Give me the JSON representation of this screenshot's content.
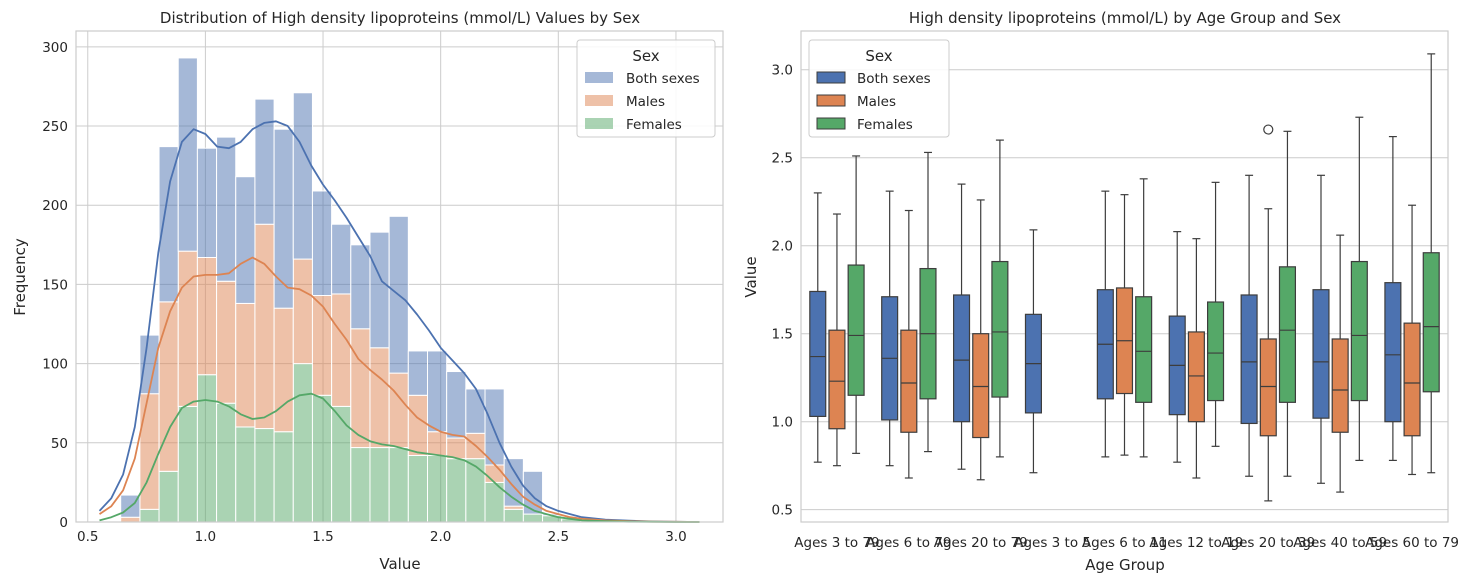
{
  "colors": {
    "both": "#4c72b0",
    "males": "#dd8452",
    "females": "#55a868",
    "grid": "#cccccc",
    "frame": "#cccccc",
    "whisker": "#3d3d3d"
  },
  "chart_data": [
    {
      "type": "histogram",
      "title": "Distribution of High density lipoproteins (mmol/L) Values by Sex",
      "xlabel": "Value",
      "ylabel": "Frequency",
      "xlim": [
        0.45,
        3.2
      ],
      "ylim": [
        0,
        310
      ],
      "xticks": [
        0.5,
        1.0,
        1.5,
        2.0,
        2.5,
        3.0
      ],
      "xtick_labels": [
        "0.5",
        "1.0",
        "1.5",
        "2.0",
        "2.5",
        "3.0"
      ],
      "yticks": [
        0,
        50,
        100,
        150,
        200,
        250,
        300
      ],
      "ytick_labels": [
        "0",
        "50",
        "100",
        "150",
        "200",
        "250",
        "300"
      ],
      "bin_start": 0.64,
      "bin_width": 0.0815,
      "stacked": true,
      "legend_title": "Sex",
      "legend_position": "top-right",
      "series": [
        {
          "name": "Females",
          "color_key": "females",
          "values": [
            0,
            8,
            32,
            73,
            93,
            75,
            60,
            59,
            57,
            100,
            80,
            73,
            47,
            47,
            47,
            42,
            42,
            40,
            40,
            25,
            8,
            5,
            4,
            2,
            1,
            0.5,
            0.3,
            0.2,
            0.1,
            0.1
          ]
        },
        {
          "name": "Males",
          "color_key": "males",
          "values": [
            3,
            73,
            107,
            98,
            74,
            77,
            78,
            129,
            78,
            66,
            63,
            71,
            75,
            63,
            47,
            38,
            15,
            13,
            16,
            11,
            2,
            0,
            0,
            0,
            0,
            0,
            0,
            0,
            0,
            0
          ]
        },
        {
          "name": "Both sexes",
          "color_key": "both",
          "values": [
            14,
            37,
            98,
            122,
            69,
            91,
            80,
            79,
            113,
            105,
            66,
            44,
            53,
            73,
            99,
            28,
            51,
            42,
            28,
            48,
            30,
            27,
            1,
            0,
            0,
            0,
            0,
            0,
            0,
            0
          ]
        }
      ],
      "kde": [
        {
          "name": "Both sexes",
          "color_key": "both",
          "x": [
            0.55,
            0.6,
            0.65,
            0.7,
            0.75,
            0.8,
            0.85,
            0.9,
            0.95,
            1.0,
            1.05,
            1.1,
            1.15,
            1.2,
            1.25,
            1.3,
            1.35,
            1.4,
            1.45,
            1.5,
            1.55,
            1.6,
            1.65,
            1.7,
            1.75,
            1.8,
            1.85,
            1.9,
            1.95,
            2.0,
            2.05,
            2.1,
            2.15,
            2.2,
            2.25,
            2.3,
            2.35,
            2.4,
            2.45,
            2.5,
            2.55,
            2.6,
            2.7,
            2.8,
            2.9,
            3.0,
            3.1
          ],
          "y": [
            7,
            15,
            30,
            60,
            110,
            170,
            215,
            240,
            248,
            245,
            237,
            236,
            240,
            248,
            252,
            253,
            250,
            240,
            225,
            213,
            203,
            192,
            180,
            168,
            152,
            146,
            140,
            131,
            121,
            110,
            102,
            94,
            84,
            68,
            50,
            35,
            23,
            15,
            10,
            7,
            5,
            3,
            1.5,
            0.8,
            0.3,
            0.1,
            0
          ]
        },
        {
          "name": "Males",
          "color_key": "males",
          "x": [
            0.55,
            0.6,
            0.65,
            0.7,
            0.75,
            0.8,
            0.85,
            0.9,
            0.95,
            1.0,
            1.05,
            1.1,
            1.15,
            1.2,
            1.25,
            1.3,
            1.35,
            1.4,
            1.45,
            1.5,
            1.55,
            1.6,
            1.65,
            1.7,
            1.75,
            1.8,
            1.85,
            1.9,
            1.95,
            2.0,
            2.05,
            2.1,
            2.15,
            2.2,
            2.25,
            2.3,
            2.35,
            2.4,
            2.45,
            2.5,
            2.55,
            2.6,
            2.7,
            2.8,
            2.9,
            3.0,
            3.1
          ],
          "y": [
            5,
            10,
            20,
            40,
            75,
            110,
            133,
            148,
            155,
            156,
            156,
            157,
            163,
            167,
            163,
            155,
            148,
            147,
            143,
            136,
            125,
            115,
            103,
            96,
            90,
            83,
            74,
            66,
            61,
            57,
            55,
            54,
            48,
            41,
            33,
            24,
            16,
            11,
            7,
            5,
            3,
            2,
            1,
            0.5,
            0.2,
            0.1,
            0
          ]
        },
        {
          "name": "Females",
          "color_key": "females",
          "x": [
            0.55,
            0.6,
            0.65,
            0.7,
            0.75,
            0.8,
            0.85,
            0.9,
            0.95,
            1.0,
            1.05,
            1.1,
            1.15,
            1.2,
            1.25,
            1.3,
            1.35,
            1.4,
            1.45,
            1.5,
            1.55,
            1.6,
            1.65,
            1.7,
            1.75,
            1.8,
            1.85,
            1.9,
            1.95,
            2.0,
            2.05,
            2.1,
            2.15,
            2.2,
            2.25,
            2.3,
            2.35,
            2.4,
            2.45,
            2.5,
            2.55,
            2.6,
            2.7,
            2.8,
            2.9,
            3.0,
            3.1
          ],
          "y": [
            1,
            3,
            6,
            12,
            25,
            43,
            60,
            72,
            76,
            77,
            76,
            73,
            68,
            65,
            66,
            70,
            76,
            80,
            81,
            78,
            70,
            61,
            55,
            51,
            49,
            48,
            46,
            44,
            43,
            42,
            41,
            39,
            35,
            29,
            22,
            16,
            11,
            7,
            5,
            3,
            2,
            1,
            0.5,
            0.2,
            0.1,
            0,
            0
          ]
        }
      ]
    },
    {
      "type": "boxplot",
      "title": "High density lipoproteins (mmol/L) by Age Group and Sex",
      "xlabel": "Age Group",
      "ylabel": "Value",
      "ylim": [
        0.43,
        3.22
      ],
      "yticks": [
        0.5,
        1.0,
        1.5,
        2.0,
        2.5,
        3.0
      ],
      "ytick_labels": [
        "0.5",
        "1.0",
        "1.5",
        "2.0",
        "2.5",
        "3.0"
      ],
      "categories": [
        "Ages 3 to 79",
        "Ages 6 to 79",
        "Ages 20 to 79",
        "Ages 3 to 5",
        "Ages 6 to 11",
        "Ages 12 to 19",
        "Ages 20 to 39",
        "Ages 40 to 59",
        "Ages 60 to 79"
      ],
      "legend_title": "Sex",
      "legend_position": "top-left",
      "hues": [
        "Both sexes",
        "Males",
        "Females"
      ],
      "hue_color_keys": [
        "both",
        "males",
        "females"
      ],
      "boxes": [
        {
          "category": 0,
          "hue": 0,
          "wlo": 0.77,
          "q1": 1.03,
          "med": 1.37,
          "q3": 1.74,
          "whi": 2.3,
          "outliers": []
        },
        {
          "category": 0,
          "hue": 1,
          "wlo": 0.75,
          "q1": 0.96,
          "med": 1.23,
          "q3": 1.52,
          "whi": 2.18,
          "outliers": []
        },
        {
          "category": 0,
          "hue": 2,
          "wlo": 0.82,
          "q1": 1.15,
          "med": 1.49,
          "q3": 1.89,
          "whi": 2.51,
          "outliers": []
        },
        {
          "category": 1,
          "hue": 0,
          "wlo": 0.75,
          "q1": 1.01,
          "med": 1.36,
          "q3": 1.71,
          "whi": 2.31,
          "outliers": []
        },
        {
          "category": 1,
          "hue": 1,
          "wlo": 0.68,
          "q1": 0.94,
          "med": 1.22,
          "q3": 1.52,
          "whi": 2.2,
          "outliers": []
        },
        {
          "category": 1,
          "hue": 2,
          "wlo": 0.83,
          "q1": 1.13,
          "med": 1.5,
          "q3": 1.87,
          "whi": 2.53,
          "outliers": []
        },
        {
          "category": 2,
          "hue": 0,
          "wlo": 0.73,
          "q1": 1.0,
          "med": 1.35,
          "q3": 1.72,
          "whi": 2.35,
          "outliers": []
        },
        {
          "category": 2,
          "hue": 1,
          "wlo": 0.67,
          "q1": 0.91,
          "med": 1.2,
          "q3": 1.5,
          "whi": 2.26,
          "outliers": []
        },
        {
          "category": 2,
          "hue": 2,
          "wlo": 0.8,
          "q1": 1.14,
          "med": 1.51,
          "q3": 1.91,
          "whi": 2.6,
          "outliers": []
        },
        {
          "category": 3,
          "hue": 0,
          "wlo": 0.71,
          "q1": 1.05,
          "med": 1.33,
          "q3": 1.61,
          "whi": 2.09,
          "outliers": []
        },
        {
          "category": 4,
          "hue": 0,
          "wlo": 0.8,
          "q1": 1.13,
          "med": 1.44,
          "q3": 1.75,
          "whi": 2.31,
          "outliers": []
        },
        {
          "category": 4,
          "hue": 1,
          "wlo": 0.81,
          "q1": 1.16,
          "med": 1.46,
          "q3": 1.76,
          "whi": 2.29,
          "outliers": []
        },
        {
          "category": 4,
          "hue": 2,
          "wlo": 0.8,
          "q1": 1.11,
          "med": 1.4,
          "q3": 1.71,
          "whi": 2.38,
          "outliers": []
        },
        {
          "category": 5,
          "hue": 0,
          "wlo": 0.77,
          "q1": 1.04,
          "med": 1.32,
          "q3": 1.6,
          "whi": 2.08,
          "outliers": []
        },
        {
          "category": 5,
          "hue": 1,
          "wlo": 0.68,
          "q1": 1.0,
          "med": 1.26,
          "q3": 1.51,
          "whi": 2.04,
          "outliers": []
        },
        {
          "category": 5,
          "hue": 2,
          "wlo": 0.86,
          "q1": 1.12,
          "med": 1.39,
          "q3": 1.68,
          "whi": 2.36,
          "outliers": []
        },
        {
          "category": 6,
          "hue": 0,
          "wlo": 0.69,
          "q1": 0.99,
          "med": 1.34,
          "q3": 1.72,
          "whi": 2.4,
          "outliers": []
        },
        {
          "category": 6,
          "hue": 1,
          "wlo": 0.55,
          "q1": 0.92,
          "med": 1.2,
          "q3": 1.47,
          "whi": 2.21,
          "outliers": [
            2.66
          ]
        },
        {
          "category": 6,
          "hue": 2,
          "wlo": 0.69,
          "q1": 1.11,
          "med": 1.52,
          "q3": 1.88,
          "whi": 2.65,
          "outliers": []
        },
        {
          "category": 7,
          "hue": 0,
          "wlo": 0.65,
          "q1": 1.02,
          "med": 1.34,
          "q3": 1.75,
          "whi": 2.4,
          "outliers": []
        },
        {
          "category": 7,
          "hue": 1,
          "wlo": 0.6,
          "q1": 0.94,
          "med": 1.18,
          "q3": 1.47,
          "whi": 2.06,
          "outliers": []
        },
        {
          "category": 7,
          "hue": 2,
          "wlo": 0.78,
          "q1": 1.12,
          "med": 1.49,
          "q3": 1.91,
          "whi": 2.73,
          "outliers": []
        },
        {
          "category": 8,
          "hue": 0,
          "wlo": 0.78,
          "q1": 1.0,
          "med": 1.38,
          "q3": 1.79,
          "whi": 2.62,
          "outliers": []
        },
        {
          "category": 8,
          "hue": 1,
          "wlo": 0.7,
          "q1": 0.92,
          "med": 1.22,
          "q3": 1.56,
          "whi": 2.23,
          "outliers": []
        },
        {
          "category": 8,
          "hue": 2,
          "wlo": 0.71,
          "q1": 1.17,
          "med": 1.54,
          "q3": 1.96,
          "whi": 3.09,
          "outliers": []
        }
      ]
    }
  ]
}
